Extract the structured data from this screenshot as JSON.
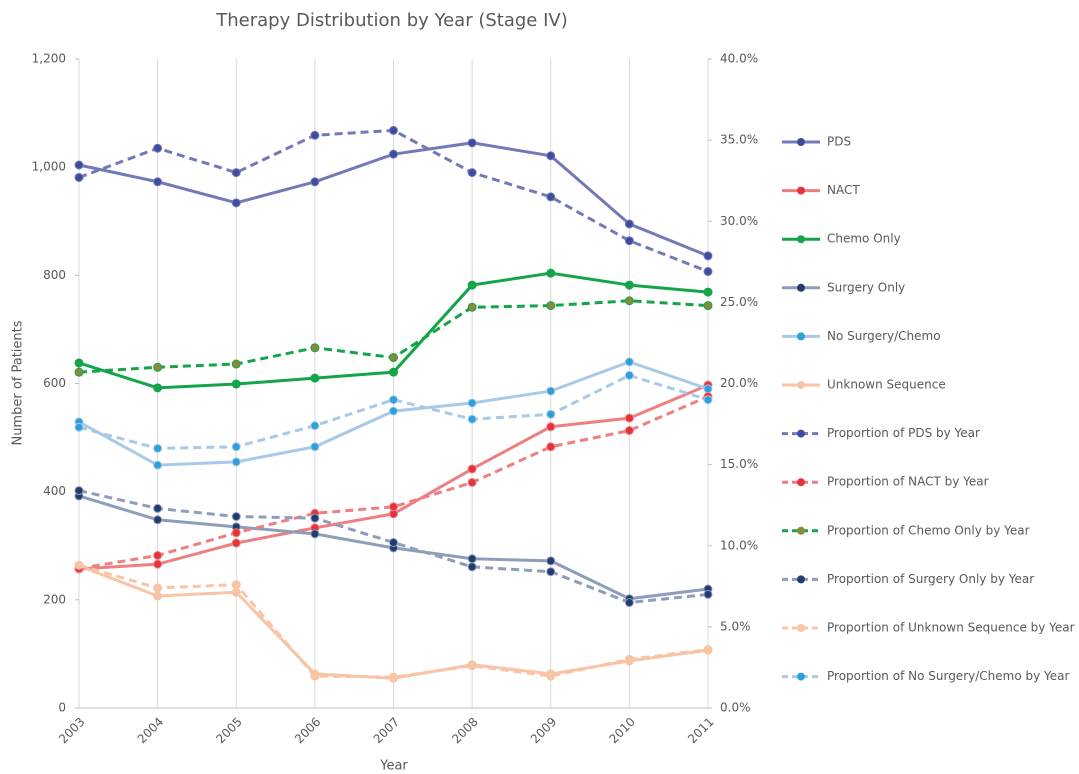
{
  "chart_data": {
    "type": "line",
    "title": "Therapy Distribution by Year (Stage IV)",
    "x_label": "Year",
    "y_label": "Number of Patients",
    "categories": [
      "2003",
      "2004",
      "2005",
      "2006",
      "2007",
      "2008",
      "2009",
      "2010",
      "2011"
    ],
    "ylim": [
      0,
      1200
    ],
    "yticks": [
      0,
      200,
      400,
      600,
      800,
      {
        "value": 1000,
        "label": "1,000"
      },
      {
        "value": 1200,
        "label": "1,200"
      }
    ],
    "y2lim": [
      0,
      40
    ],
    "y2ticks": [
      {
        "value": 0,
        "label": "0.0%"
      },
      {
        "value": 5,
        "label": "5.0%"
      },
      {
        "value": 10,
        "label": "10.0%"
      },
      {
        "value": 15,
        "label": "15.0%"
      },
      {
        "value": 20,
        "label": "20.0%"
      },
      {
        "value": 25,
        "label": "25.0%"
      },
      {
        "value": 30,
        "label": "30.0%"
      },
      {
        "value": 35,
        "label": "35.0%"
      },
      {
        "value": 40,
        "label": "40.0%"
      }
    ],
    "grid": "x",
    "legend": "right",
    "series": [
      {
        "name": "PDS",
        "color": "#7379b8",
        "marker_color": "#3d4d9e",
        "dashed": false,
        "axis": "y",
        "values": [
          1004,
          973,
          934,
          973,
          1024,
          1045,
          1021,
          895,
          836
        ]
      },
      {
        "name": "NACT",
        "color": "#ee7f80",
        "marker_color": "#e5323b",
        "dashed": false,
        "axis": "y",
        "values": [
          257,
          266,
          305,
          333,
          359,
          442,
          520,
          536,
          597
        ]
      },
      {
        "name": "Chemo Only",
        "color": "#14a44a",
        "marker_color": "#14a44a",
        "dashed": false,
        "axis": "y",
        "values": [
          638,
          592,
          599,
          610,
          621,
          782,
          804,
          782,
          769
        ]
      },
      {
        "name": "Surgery Only",
        "color": "#8e9dba",
        "marker_color": "#1f3d6e",
        "dashed": false,
        "axis": "y",
        "values": [
          392,
          348,
          335,
          322,
          296,
          276,
          272,
          202,
          220
        ]
      },
      {
        "name": "No Surgery/Chemo",
        "color": "#a9c9e8",
        "marker_color": "#2ba0dc",
        "dashed": false,
        "axis": "y",
        "values": [
          529,
          449,
          455,
          483,
          549,
          564,
          586,
          640,
          590
        ]
      },
      {
        "name": "Unknown Sequence",
        "color": "#f8c4a6",
        "marker_color": "#f8c4a6",
        "dashed": false,
        "axis": "y",
        "values": [
          263,
          207,
          214,
          63,
          55,
          80,
          63,
          87,
          107
        ]
      },
      {
        "name": "Proportion of PDS by Year",
        "color": "#7379b8",
        "marker_color": "#3d4d9e",
        "dashed": true,
        "axis": "y2",
        "values": [
          32.7,
          34.5,
          33.0,
          35.3,
          35.6,
          33.0,
          31.5,
          28.8,
          26.9
        ]
      },
      {
        "name": "Proportion of NACT by Year",
        "color": "#ee7f80",
        "marker_color": "#e5323b",
        "dashed": true,
        "axis": "y2",
        "values": [
          8.6,
          9.4,
          10.8,
          12.0,
          12.4,
          13.9,
          16.1,
          17.1,
          19.2
        ]
      },
      {
        "name": "Proportion of Chemo Only by Year",
        "color": "#14a44a",
        "marker_color": "#8a8a3a",
        "dashed": true,
        "axis": "y2",
        "values": [
          20.7,
          21.0,
          21.2,
          22.2,
          21.6,
          24.7,
          24.8,
          25.1,
          24.8
        ]
      },
      {
        "name": "Proportion of Surgery Only by Year",
        "color": "#8e9dba",
        "marker_color": "#1f3d6e",
        "dashed": true,
        "axis": "y2",
        "values": [
          13.4,
          12.3,
          11.8,
          11.7,
          10.2,
          8.7,
          8.4,
          6.5,
          7.0
        ]
      },
      {
        "name": "Proportion of Unknown Sequence by Year",
        "color": "#f8c4a6",
        "marker_color": "#f8c4a6",
        "dashed": true,
        "axis": "y2",
        "values": [
          8.8,
          7.4,
          7.6,
          1.97,
          1.9,
          2.6,
          1.97,
          3.0,
          3.6
        ]
      },
      {
        "name": "Proportion of No Surgery/Chemo by Year",
        "color": "#a9c9e8",
        "marker_color": "#2ba0dc",
        "dashed": true,
        "axis": "y2",
        "values": [
          17.3,
          16.0,
          16.1,
          17.4,
          19.0,
          17.8,
          18.1,
          20.5,
          19.0
        ]
      }
    ]
  }
}
